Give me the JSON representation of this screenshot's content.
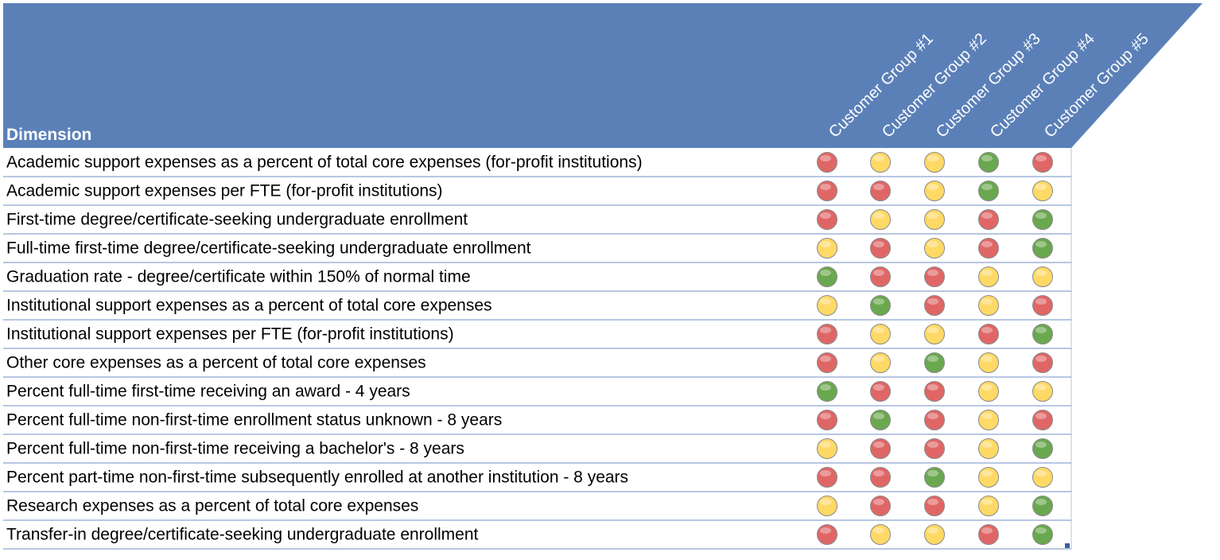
{
  "header": {
    "dimension": "Dimension",
    "columns": [
      "Customer Group #1",
      "Customer Group #2",
      "Customer Group #3",
      "Customer Group #4",
      "Customer Group #5"
    ]
  },
  "rows": [
    {
      "label": "Academic support expenses as a percent of total core expenses (for-profit institutions)",
      "status": [
        "#e06666",
        "#ffd966",
        "#ffd966",
        "#6aa84f",
        "#e06666"
      ]
    },
    {
      "label": "Academic support expenses per FTE (for-profit institutions)",
      "status": [
        "#e06666",
        "#e06666",
        "#ffd966",
        "#6aa84f",
        "#ffd966"
      ]
    },
    {
      "label": "First-time degree/certificate-seeking undergraduate enrollment",
      "status": [
        "#e06666",
        "#ffd966",
        "#ffd966",
        "#e06666",
        "#6aa84f"
      ]
    },
    {
      "label": "Full-time first-time degree/certificate-seeking undergraduate enrollment",
      "status": [
        "#ffd966",
        "#e06666",
        "#ffd966",
        "#e06666",
        "#6aa84f"
      ]
    },
    {
      "label": "Graduation rate - degree/certificate within 150% of normal time",
      "status": [
        "#6aa84f",
        "#e06666",
        "#e06666",
        "#ffd966",
        "#ffd966"
      ]
    },
    {
      "label": "Institutional support expenses as a percent of total core expenses",
      "status": [
        "#ffd966",
        "#6aa84f",
        "#e06666",
        "#ffd966",
        "#e06666"
      ]
    },
    {
      "label": "Institutional support expenses per FTE (for-profit institutions)",
      "status": [
        "#e06666",
        "#ffd966",
        "#ffd966",
        "#e06666",
        "#6aa84f"
      ]
    },
    {
      "label": "Other core expenses as a percent of total core expenses",
      "status": [
        "#e06666",
        "#ffd966",
        "#6aa84f",
        "#ffd966",
        "#e06666"
      ]
    },
    {
      "label": "Percent full-time first-time receiving an award - 4 years",
      "status": [
        "#6aa84f",
        "#e06666",
        "#e06666",
        "#ffd966",
        "#ffd966"
      ]
    },
    {
      "label": "Percent full-time non-first-time enrollment status unknown - 8 years",
      "status": [
        "#e06666",
        "#6aa84f",
        "#e06666",
        "#ffd966",
        "#e06666"
      ]
    },
    {
      "label": "Percent full-time non-first-time receiving a bachelor's - 8 years",
      "status": [
        "#ffd966",
        "#e06666",
        "#e06666",
        "#ffd966",
        "#6aa84f"
      ]
    },
    {
      "label": "Percent part-time non-first-time subsequently enrolled at another institution - 8 years",
      "status": [
        "#e06666",
        "#e06666",
        "#6aa84f",
        "#ffd966",
        "#ffd966"
      ]
    },
    {
      "label": "Research expenses as a percent of total core expenses",
      "status": [
        "#ffd966",
        "#e06666",
        "#e06666",
        "#ffd966",
        "#6aa84f"
      ]
    },
    {
      "label": "Transfer-in degree/certificate-seeking undergraduate enrollment",
      "status": [
        "#e06666",
        "#ffd966",
        "#ffd966",
        "#e06666",
        "#6aa84f"
      ]
    }
  ]
}
